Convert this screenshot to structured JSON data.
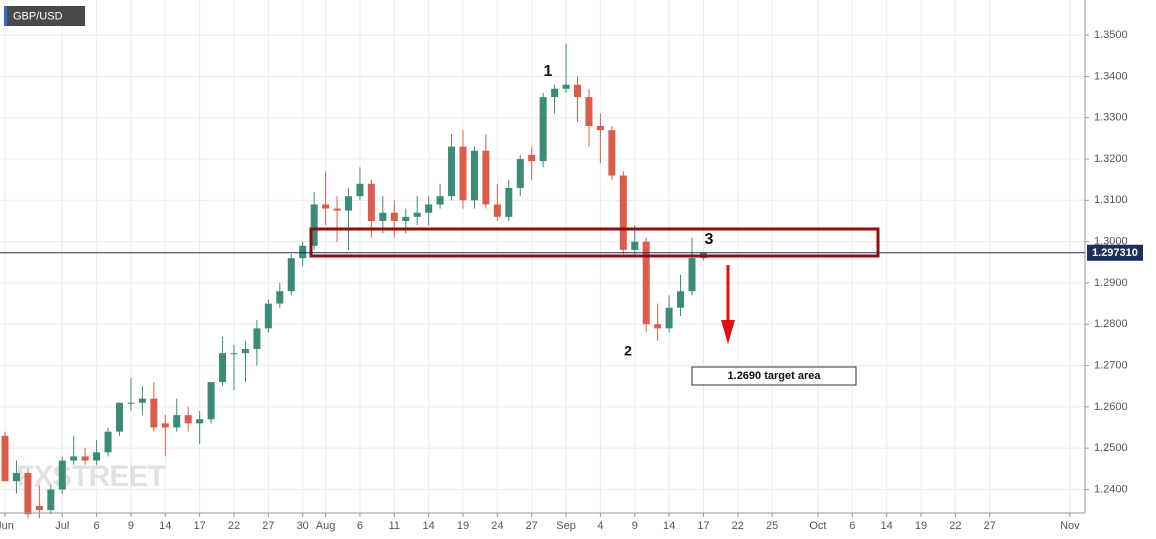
{
  "chart_data": {
    "type": "candlestick",
    "title": "GBP/USD",
    "logo": "FXSTREET",
    "categories": [
      "Jun",
      null,
      null,
      null,
      null,
      "Jul",
      null,
      null,
      "6",
      null,
      null,
      "9",
      null,
      null,
      "14",
      null,
      null,
      "17",
      null,
      null,
      "22",
      null,
      null,
      "27",
      null,
      null,
      "30",
      null,
      "Aug",
      null,
      null,
      "6",
      null,
      null,
      "11",
      null,
      null,
      "14",
      null,
      null,
      "19",
      null,
      null,
      "24",
      null,
      null,
      "27",
      null,
      null,
      "Sep",
      null,
      null,
      "4",
      null,
      null,
      "9",
      null,
      null,
      "14",
      null,
      null,
      "17",
      null,
      null,
      "22",
      null,
      null,
      "25",
      null,
      null,
      null,
      "Oct",
      null,
      null,
      "6",
      null,
      null,
      "14",
      null,
      null,
      "19",
      null,
      null,
      "22",
      null,
      null,
      "27",
      null,
      null,
      null,
      null,
      null,
      null,
      "Nov",
      null
    ],
    "open": [
      1.253,
      1.242,
      1.244,
      1.236,
      1.235,
      1.24,
      1.247,
      1.248,
      1.247,
      1.249,
      1.254,
      1.261,
      1.261,
      1.262,
      1.256,
      1.255,
      1.258,
      1.256,
      1.257,
      1.266,
      1.273,
      1.273,
      1.274,
      1.279,
      1.285,
      1.288,
      1.296,
      1.299,
      1.309,
      1.308,
      1.3075,
      1.311,
      1.314,
      1.305,
      1.307,
      1.305,
      1.306,
      1.307,
      1.309,
      1.311,
      1.323,
      1.31,
      1.322,
      1.309,
      1.306,
      1.313,
      1.321,
      1.3195,
      1.335,
      1.337,
      1.338,
      1.335,
      1.328,
      1.327,
      1.316,
      1.298,
      1.3,
      1.28,
      1.279,
      1.284,
      1.288,
      1.296,
      null,
      null,
      null,
      null,
      null,
      null,
      null,
      null,
      null,
      null,
      null,
      null,
      null,
      null,
      null,
      null,
      null,
      null,
      null,
      null,
      null,
      null,
      null,
      null,
      null,
      null,
      null,
      null,
      null,
      null,
      null,
      null,
      null
    ],
    "high": [
      1.254,
      1.247,
      1.245,
      1.241,
      1.241,
      1.248,
      1.253,
      1.25,
      1.252,
      1.255,
      1.261,
      1.267,
      1.265,
      1.266,
      1.258,
      1.262,
      1.26,
      1.259,
      1.266,
      1.277,
      1.275,
      1.276,
      1.281,
      1.286,
      1.29,
      1.297,
      1.3,
      1.312,
      1.317,
      1.311,
      1.313,
      1.318,
      1.315,
      1.311,
      1.31,
      1.308,
      1.311,
      1.311,
      1.314,
      1.326,
      1.327,
      1.323,
      1.326,
      1.314,
      1.315,
      1.321,
      1.323,
      1.336,
      1.338,
      1.348,
      1.34,
      1.337,
      1.331,
      1.328,
      1.317,
      1.304,
      1.301,
      1.285,
      1.287,
      1.292,
      1.301,
      1.2975,
      null,
      null,
      null,
      null,
      null,
      null,
      null,
      null,
      null,
      null,
      null,
      null,
      null,
      null,
      null,
      null,
      null,
      null,
      null,
      null,
      null,
      null,
      null,
      null,
      null,
      null,
      null,
      null,
      null,
      null,
      null,
      null,
      null
    ],
    "low": [
      1.242,
      1.239,
      1.233,
      1.233,
      1.234,
      1.239,
      1.246,
      1.246,
      1.246,
      1.248,
      1.253,
      1.259,
      1.258,
      1.254,
      1.248,
      1.254,
      1.254,
      1.251,
      1.256,
      1.265,
      1.264,
      1.266,
      1.27,
      1.278,
      1.284,
      1.287,
      1.294,
      1.298,
      1.304,
      1.3,
      1.298,
      1.31,
      1.301,
      1.302,
      1.301,
      1.302,
      1.304,
      1.304,
      1.308,
      1.31,
      1.308,
      1.308,
      1.308,
      1.305,
      1.305,
      1.311,
      1.315,
      1.318,
      1.331,
      1.336,
      1.329,
      1.323,
      1.319,
      1.315,
      1.297,
      1.297,
      1.278,
      1.276,
      1.278,
      1.282,
      1.287,
      1.2955,
      null,
      null,
      null,
      null,
      null,
      null,
      null,
      null,
      null,
      null,
      null,
      null,
      null,
      null,
      null,
      null,
      null,
      null,
      null,
      null,
      null,
      null,
      null,
      null,
      null,
      null,
      null,
      null,
      null,
      null,
      null,
      null,
      null
    ],
    "close": [
      1.242,
      1.244,
      1.234,
      1.235,
      1.24,
      1.247,
      1.248,
      1.247,
      1.249,
      1.254,
      1.261,
      1.261,
      1.262,
      1.255,
      1.255,
      1.258,
      1.256,
      1.257,
      1.266,
      1.273,
      1.273,
      1.274,
      1.279,
      1.285,
      1.288,
      1.296,
      1.299,
      1.309,
      1.308,
      1.3075,
      1.311,
      1.314,
      1.305,
      1.307,
      1.305,
      1.306,
      1.307,
      1.309,
      1.311,
      1.323,
      1.31,
      1.322,
      1.309,
      1.306,
      1.313,
      1.32,
      1.3195,
      1.335,
      1.337,
      1.338,
      1.335,
      1.328,
      1.327,
      1.316,
      1.298,
      1.3,
      1.28,
      1.279,
      1.284,
      1.288,
      1.296,
      1.2973,
      null,
      null,
      null,
      null,
      null,
      null,
      null,
      null,
      null,
      null,
      null,
      null,
      null,
      null,
      null,
      null,
      null,
      null,
      null,
      null,
      null,
      null,
      null,
      null,
      null,
      null,
      null,
      null,
      null,
      null,
      null,
      null,
      null
    ],
    "up_color": "#3b8c76",
    "down_color": "#dc5c4b",
    "ylim": [
      1.2343,
      1.3585
    ],
    "yticks": [
      {
        "value": 1.24,
        "label": "1.2400"
      },
      {
        "value": 1.25,
        "label": "1.2500"
      },
      {
        "value": 1.26,
        "label": "1.2600"
      },
      {
        "value": 1.27,
        "label": "1.2700"
      },
      {
        "value": 1.28,
        "label": "1.2800"
      },
      {
        "value": 1.29,
        "label": "1.2900"
      },
      {
        "value": 1.3,
        "label": "1.3000"
      },
      {
        "value": 1.31,
        "label": "1.3100"
      },
      {
        "value": 1.32,
        "label": "1.3200"
      },
      {
        "value": 1.33,
        "label": "1.3300"
      },
      {
        "value": 1.34,
        "label": "1.3400"
      },
      {
        "value": 1.35,
        "label": "1.3500"
      }
    ],
    "current_price": {
      "value": 1.29731,
      "label": "1.297310"
    },
    "grid": true,
    "annotations": [
      "1",
      "2",
      "3",
      "1.2690 target area"
    ]
  }
}
